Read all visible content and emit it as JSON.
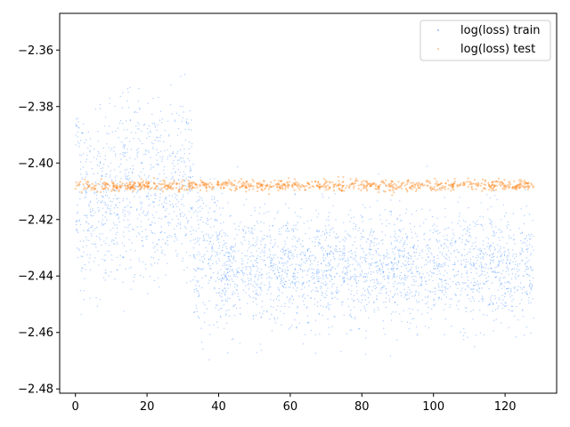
{
  "chart_data": {
    "type": "scatter",
    "title": "",
    "xlabel": "",
    "ylabel": "",
    "xlim": [
      -4.4,
      134.4
    ],
    "ylim": [
      -2.4815,
      -2.347
    ],
    "x_ticks": [
      0,
      20,
      40,
      60,
      80,
      100,
      120
    ],
    "y_ticks": [
      -2.48,
      -2.46,
      -2.44,
      -2.42,
      -2.4,
      -2.38,
      -2.36
    ],
    "x_tick_labels": [
      "0",
      "20",
      "40",
      "60",
      "80",
      "100",
      "120"
    ],
    "y_tick_labels": [
      "−2.48",
      "−2.46",
      "−2.44",
      "−2.42",
      "−2.40",
      "−2.38",
      "−2.36"
    ],
    "grid": false,
    "legend_position": "top-right",
    "series": [
      {
        "name": "log(loss) train",
        "color": "#1f77ff",
        "x_range": [
          0,
          128
        ],
        "trend_segments": [
          {
            "x_range": [
              0,
              1
            ],
            "centers": [
              -2.388,
              -2.423
            ],
            "spread": 0.004
          },
          {
            "x_range": [
              1,
              12
            ],
            "centers": [
              -2.407,
              -2.423
            ],
            "spread": 0.012
          },
          {
            "x_range": [
              12,
              33
            ],
            "centers": [
              -2.422,
              -2.398
            ],
            "spread": 0.012
          },
          {
            "x_range": [
              33,
              40
            ],
            "centers": [
              -2.432
            ],
            "spread": 0.012
          },
          {
            "x_range": [
              40,
              128
            ],
            "centers": [
              -2.437
            ],
            "spread": 0.01
          }
        ]
      },
      {
        "name": "log(loss) test",
        "color": "#ff7f0e",
        "x_range": [
          0,
          128
        ],
        "center": -2.408,
        "spread": 0.001
      }
    ]
  }
}
